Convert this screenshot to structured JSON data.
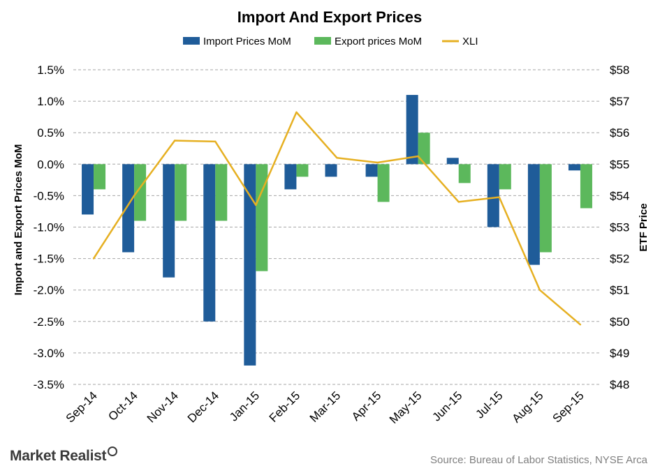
{
  "chart_data": {
    "type": "bar",
    "title": "Import And Export Prices",
    "categories": [
      "Sep-14",
      "Oct-14",
      "Nov-14",
      "Dec-14",
      "Jan-15",
      "Feb-15",
      "Mar-15",
      "Apr-15",
      "May-15",
      "Jun-15",
      "Jul-15",
      "Aug-15",
      "Sep-15"
    ],
    "series": [
      {
        "name": "Import Prices MoM",
        "type": "bar",
        "axis": "left",
        "color": "#1f5c99",
        "values": [
          -0.8,
          -1.4,
          -1.8,
          -2.5,
          -3.2,
          -0.4,
          -0.2,
          -0.2,
          1.1,
          0.1,
          -1.0,
          -1.6,
          -0.1
        ]
      },
      {
        "name": "Export prices MoM",
        "type": "bar",
        "axis": "left",
        "color": "#5cb85c",
        "values": [
          -0.4,
          -0.9,
          -0.9,
          -0.9,
          -1.7,
          -0.2,
          null,
          -0.6,
          0.5,
          -0.3,
          -0.4,
          -1.4,
          -0.7
        ]
      },
      {
        "name": "XLI",
        "type": "line",
        "axis": "right",
        "color": "#e6b022",
        "values": [
          52.0,
          54.0,
          55.75,
          55.72,
          53.7,
          56.65,
          55.2,
          55.05,
          55.25,
          53.8,
          53.95,
          51.0,
          49.9
        ]
      }
    ],
    "ylabel": "Import and Export Prices MoM",
    "ylabel_right": "ETF Price",
    "ylim": [
      -3.5,
      1.5
    ],
    "ylim_right": [
      48,
      58
    ],
    "yticks": [
      "1.5%",
      "1.0%",
      "0.5%",
      "0.0%",
      "-0.5%",
      "-1.0%",
      "-1.5%",
      "-2.0%",
      "-2.5%",
      "-3.0%",
      "-3.5%"
    ],
    "yticks_right": [
      "$58",
      "$57",
      "$56",
      "$55",
      "$54",
      "$53",
      "$52",
      "$51",
      "$50",
      "$49",
      "$48"
    ],
    "grid": true,
    "legend_position": "top-center"
  },
  "footer": {
    "logo": "Market Realist",
    "source": "Source: Bureau of Labor Statistics, NYSE Arca"
  }
}
